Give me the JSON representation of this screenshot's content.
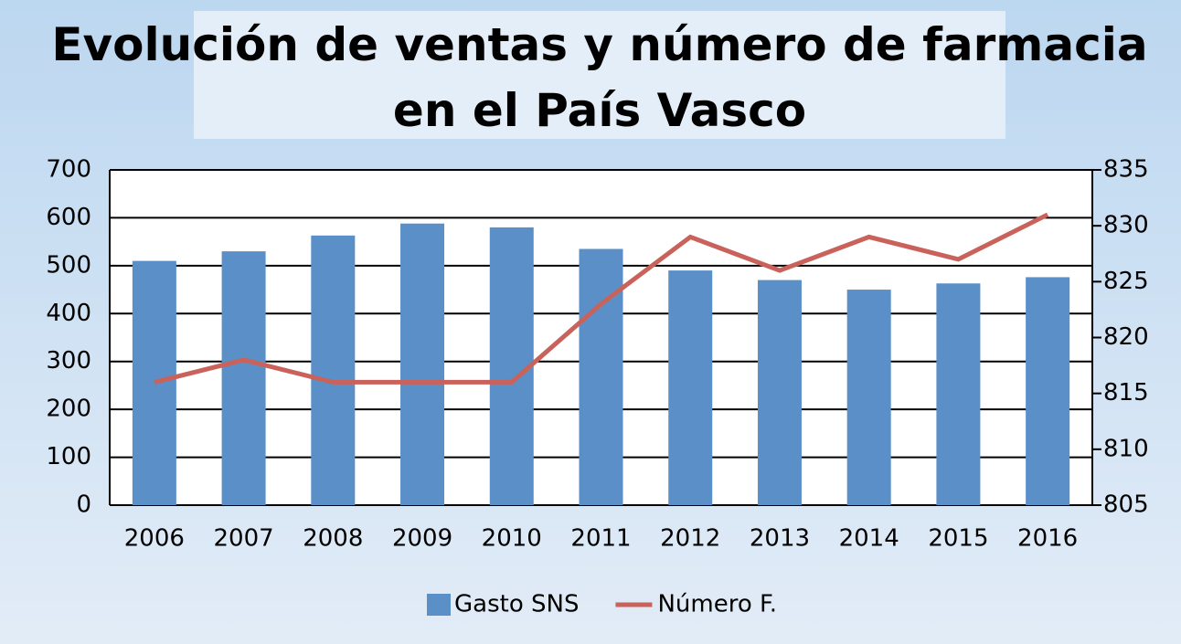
{
  "chart_data": {
    "type": "bar",
    "title": "Evolución de ventas y número de farmacia en el País Vasco",
    "categories": [
      "2006",
      "2007",
      "2008",
      "2009",
      "2010",
      "2011",
      "2012",
      "2013",
      "2014",
      "2015",
      "2016"
    ],
    "series": [
      {
        "name": "Gasto SNS",
        "color": "#5b8fc8",
        "values": [
          510,
          530,
          563,
          588,
          580,
          535,
          490,
          470,
          450,
          463,
          476
        ]
      },
      {
        "name": "Número F.",
        "color": "#c9625a",
        "axis": "y2",
        "values": [
          816,
          818,
          816,
          816,
          816,
          823,
          829,
          826,
          829,
          827,
          831
        ]
      }
    ],
    "ylim": [
      0,
      700
    ],
    "yticks": [
      0,
      100,
      200,
      300,
      400,
      500,
      600,
      700
    ],
    "y2lim": [
      805,
      835
    ],
    "y2ticks": [
      805,
      810,
      815,
      820,
      825,
      830,
      835
    ],
    "grid": true,
    "legend": "bottom"
  }
}
